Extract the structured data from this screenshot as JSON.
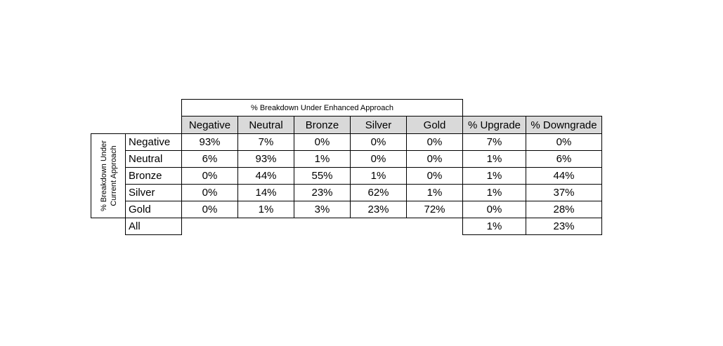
{
  "table": {
    "title": "% Breakdown Under Enhanced Approach",
    "row_title": "% Breakdown Under Current Approach",
    "columns": [
      "Negative",
      "Neutral",
      "Bronze",
      "Silver",
      "Gold",
      "% Upgrade",
      "% Downgrade"
    ],
    "rows": [
      {
        "label": "Negative",
        "cells": [
          "93%",
          "7%",
          "0%",
          "0%",
          "0%",
          "7%",
          "0%"
        ]
      },
      {
        "label": "Neutral",
        "cells": [
          "6%",
          "93%",
          "1%",
          "0%",
          "0%",
          "1%",
          "6%"
        ]
      },
      {
        "label": "Bronze",
        "cells": [
          "0%",
          "44%",
          "55%",
          "1%",
          "0%",
          "1%",
          "44%"
        ]
      },
      {
        "label": "Silver",
        "cells": [
          "0%",
          "14%",
          "23%",
          "62%",
          "1%",
          "1%",
          "37%"
        ]
      },
      {
        "label": "Gold",
        "cells": [
          "0%",
          "1%",
          "3%",
          "23%",
          "72%",
          "0%",
          "28%"
        ]
      }
    ],
    "all_row": {
      "label": "All",
      "cells": [
        "1%",
        "23%"
      ]
    }
  }
}
